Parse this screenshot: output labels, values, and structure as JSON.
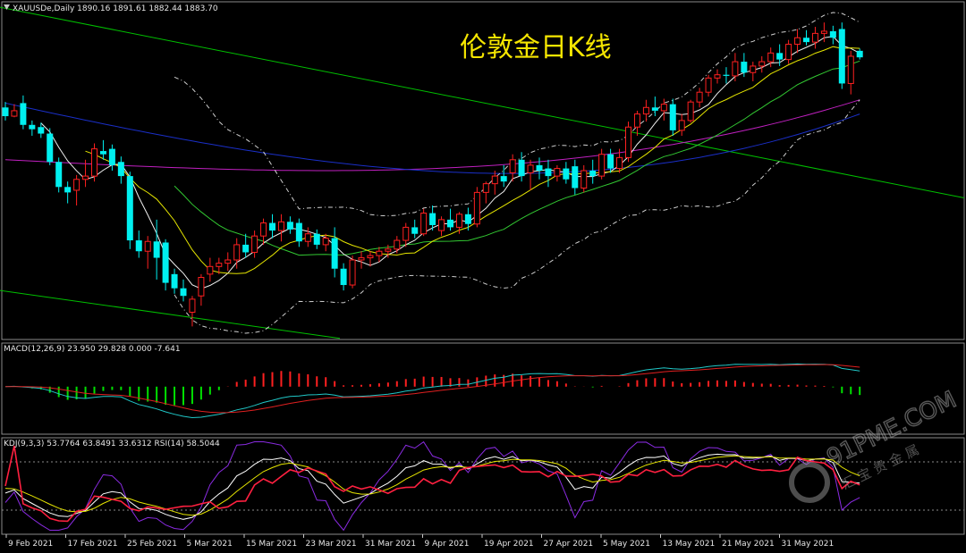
{
  "chart_data": {
    "type": "candlestick",
    "symbol_label": "XAUUSDe,Daily",
    "ohlc_label": "1890.16 1891.61 1882.44 1883.70",
    "title": "伦敦金日K线",
    "macd_label": "MACD(12,26,9) 23.950 29.828 0.000 -7.641",
    "kdj_label": "KDJ(9,3,3) 53.7764 63.8491 33.6312 RSI(14) 58.5044",
    "watermark": "91PME.COM",
    "watermark_sub": "汇 宝 贵 金 属",
    "x_ticks": [
      "9 Feb 2021",
      "17 Feb 2021",
      "25 Feb 2021",
      "5 Mar 2021",
      "15 Mar 2021",
      "23 Mar 2021",
      "31 Mar 2021",
      "9 Apr 2021",
      "19 Apr 2021",
      "27 Apr 2021",
      "5 May 2021",
      "13 May 2021",
      "21 May 2021",
      "31 May 2021"
    ],
    "candles": [
      {
        "o": 1838,
        "h": 1843,
        "l": 1826,
        "c": 1830
      },
      {
        "o": 1830,
        "h": 1841,
        "l": 1829,
        "c": 1835
      },
      {
        "o": 1842,
        "h": 1849,
        "l": 1818,
        "c": 1822
      },
      {
        "o": 1822,
        "h": 1826,
        "l": 1812,
        "c": 1818
      },
      {
        "o": 1820,
        "h": 1824,
        "l": 1810,
        "c": 1814
      },
      {
        "o": 1814,
        "h": 1819,
        "l": 1785,
        "c": 1788
      },
      {
        "o": 1788,
        "h": 1792,
        "l": 1760,
        "c": 1765
      },
      {
        "o": 1765,
        "h": 1770,
        "l": 1750,
        "c": 1760
      },
      {
        "o": 1762,
        "h": 1776,
        "l": 1748,
        "c": 1772
      },
      {
        "o": 1772,
        "h": 1790,
        "l": 1765,
        "c": 1775
      },
      {
        "o": 1775,
        "h": 1805,
        "l": 1770,
        "c": 1800
      },
      {
        "o": 1798,
        "h": 1808,
        "l": 1790,
        "c": 1795
      },
      {
        "o": 1800,
        "h": 1804,
        "l": 1780,
        "c": 1785
      },
      {
        "o": 1788,
        "h": 1793,
        "l": 1768,
        "c": 1775
      },
      {
        "o": 1775,
        "h": 1779,
        "l": 1708,
        "c": 1716
      },
      {
        "o": 1716,
        "h": 1725,
        "l": 1700,
        "c": 1706
      },
      {
        "o": 1706,
        "h": 1720,
        "l": 1690,
        "c": 1715
      },
      {
        "o": 1715,
        "h": 1735,
        "l": 1680,
        "c": 1700
      },
      {
        "o": 1714,
        "h": 1717,
        "l": 1670,
        "c": 1677
      },
      {
        "o": 1685,
        "h": 1690,
        "l": 1667,
        "c": 1672
      },
      {
        "o": 1672,
        "h": 1680,
        "l": 1660,
        "c": 1665
      },
      {
        "o": 1650,
        "h": 1665,
        "l": 1637,
        "c": 1662
      },
      {
        "o": 1665,
        "h": 1685,
        "l": 1656,
        "c": 1682
      },
      {
        "o": 1685,
        "h": 1700,
        "l": 1678,
        "c": 1692
      },
      {
        "o": 1692,
        "h": 1700,
        "l": 1685,
        "c": 1695
      },
      {
        "o": 1695,
        "h": 1705,
        "l": 1688,
        "c": 1698
      },
      {
        "o": 1698,
        "h": 1718,
        "l": 1690,
        "c": 1712
      },
      {
        "o": 1712,
        "h": 1722,
        "l": 1700,
        "c": 1705
      },
      {
        "o": 1705,
        "h": 1725,
        "l": 1700,
        "c": 1720
      },
      {
        "o": 1720,
        "h": 1736,
        "l": 1712,
        "c": 1732
      },
      {
        "o": 1732,
        "h": 1740,
        "l": 1718,
        "c": 1725
      },
      {
        "o": 1725,
        "h": 1740,
        "l": 1715,
        "c": 1733
      },
      {
        "o": 1733,
        "h": 1738,
        "l": 1722,
        "c": 1726
      },
      {
        "o": 1732,
        "h": 1736,
        "l": 1710,
        "c": 1715
      },
      {
        "o": 1715,
        "h": 1728,
        "l": 1710,
        "c": 1722
      },
      {
        "o": 1722,
        "h": 1726,
        "l": 1708,
        "c": 1712
      },
      {
        "o": 1712,
        "h": 1722,
        "l": 1706,
        "c": 1718
      },
      {
        "o": 1718,
        "h": 1728,
        "l": 1682,
        "c": 1690
      },
      {
        "o": 1690,
        "h": 1695,
        "l": 1670,
        "c": 1675
      },
      {
        "o": 1675,
        "h": 1702,
        "l": 1672,
        "c": 1698
      },
      {
        "o": 1698,
        "h": 1706,
        "l": 1690,
        "c": 1700
      },
      {
        "o": 1700,
        "h": 1706,
        "l": 1692,
        "c": 1702
      },
      {
        "o": 1702,
        "h": 1710,
        "l": 1696,
        "c": 1706
      },
      {
        "o": 1706,
        "h": 1712,
        "l": 1700,
        "c": 1708
      },
      {
        "o": 1708,
        "h": 1720,
        "l": 1704,
        "c": 1716
      },
      {
        "o": 1716,
        "h": 1732,
        "l": 1710,
        "c": 1728
      },
      {
        "o": 1728,
        "h": 1735,
        "l": 1718,
        "c": 1722
      },
      {
        "o": 1722,
        "h": 1745,
        "l": 1720,
        "c": 1741
      },
      {
        "o": 1741,
        "h": 1748,
        "l": 1725,
        "c": 1730
      },
      {
        "o": 1725,
        "h": 1738,
        "l": 1720,
        "c": 1735
      },
      {
        "o": 1735,
        "h": 1745,
        "l": 1725,
        "c": 1728
      },
      {
        "o": 1728,
        "h": 1742,
        "l": 1722,
        "c": 1740
      },
      {
        "o": 1740,
        "h": 1746,
        "l": 1725,
        "c": 1731
      },
      {
        "o": 1731,
        "h": 1765,
        "l": 1728,
        "c": 1760
      },
      {
        "o": 1760,
        "h": 1770,
        "l": 1750,
        "c": 1768
      },
      {
        "o": 1768,
        "h": 1780,
        "l": 1758,
        "c": 1775
      },
      {
        "o": 1775,
        "h": 1785,
        "l": 1765,
        "c": 1770
      },
      {
        "o": 1778,
        "h": 1795,
        "l": 1770,
        "c": 1790
      },
      {
        "o": 1790,
        "h": 1797,
        "l": 1770,
        "c": 1775
      },
      {
        "o": 1778,
        "h": 1790,
        "l": 1762,
        "c": 1785
      },
      {
        "o": 1785,
        "h": 1792,
        "l": 1772,
        "c": 1780
      },
      {
        "o": 1782,
        "h": 1790,
        "l": 1765,
        "c": 1775
      },
      {
        "o": 1775,
        "h": 1785,
        "l": 1770,
        "c": 1782
      },
      {
        "o": 1782,
        "h": 1788,
        "l": 1768,
        "c": 1772
      },
      {
        "o": 1784,
        "h": 1790,
        "l": 1758,
        "c": 1764
      },
      {
        "o": 1764,
        "h": 1785,
        "l": 1760,
        "c": 1780
      },
      {
        "o": 1780,
        "h": 1790,
        "l": 1768,
        "c": 1775
      },
      {
        "o": 1775,
        "h": 1800,
        "l": 1772,
        "c": 1795
      },
      {
        "o": 1795,
        "h": 1800,
        "l": 1778,
        "c": 1782
      },
      {
        "o": 1782,
        "h": 1800,
        "l": 1778,
        "c": 1792
      },
      {
        "o": 1792,
        "h": 1825,
        "l": 1788,
        "c": 1820
      },
      {
        "o": 1820,
        "h": 1835,
        "l": 1812,
        "c": 1832
      },
      {
        "o": 1832,
        "h": 1845,
        "l": 1825,
        "c": 1838
      },
      {
        "o": 1838,
        "h": 1848,
        "l": 1830,
        "c": 1835
      },
      {
        "o": 1835,
        "h": 1846,
        "l": 1826,
        "c": 1841
      },
      {
        "o": 1841,
        "h": 1846,
        "l": 1812,
        "c": 1817
      },
      {
        "o": 1817,
        "h": 1832,
        "l": 1812,
        "c": 1826
      },
      {
        "o": 1826,
        "h": 1845,
        "l": 1824,
        "c": 1843
      },
      {
        "o": 1843,
        "h": 1856,
        "l": 1838,
        "c": 1852
      },
      {
        "o": 1852,
        "h": 1868,
        "l": 1848,
        "c": 1865
      },
      {
        "o": 1865,
        "h": 1873,
        "l": 1860,
        "c": 1868
      },
      {
        "o": 1868,
        "h": 1875,
        "l": 1860,
        "c": 1867
      },
      {
        "o": 1867,
        "h": 1888,
        "l": 1862,
        "c": 1880
      },
      {
        "o": 1880,
        "h": 1888,
        "l": 1866,
        "c": 1870
      },
      {
        "o": 1870,
        "h": 1880,
        "l": 1862,
        "c": 1876
      },
      {
        "o": 1876,
        "h": 1885,
        "l": 1870,
        "c": 1880
      },
      {
        "o": 1880,
        "h": 1893,
        "l": 1875,
        "c": 1888
      },
      {
        "o": 1888,
        "h": 1896,
        "l": 1876,
        "c": 1882
      },
      {
        "o": 1882,
        "h": 1900,
        "l": 1878,
        "c": 1896
      },
      {
        "o": 1896,
        "h": 1910,
        "l": 1888,
        "c": 1902
      },
      {
        "o": 1902,
        "h": 1909,
        "l": 1895,
        "c": 1898
      },
      {
        "o": 1898,
        "h": 1912,
        "l": 1892,
        "c": 1906
      },
      {
        "o": 1906,
        "h": 1916,
        "l": 1898,
        "c": 1908
      },
      {
        "o": 1908,
        "h": 1913,
        "l": 1896,
        "c": 1902
      },
      {
        "o": 1910,
        "h": 1916,
        "l": 1855,
        "c": 1860
      },
      {
        "o": 1860,
        "h": 1890,
        "l": 1850,
        "c": 1885
      },
      {
        "o": 1890,
        "h": 1892,
        "l": 1882,
        "c": 1884
      }
    ]
  }
}
